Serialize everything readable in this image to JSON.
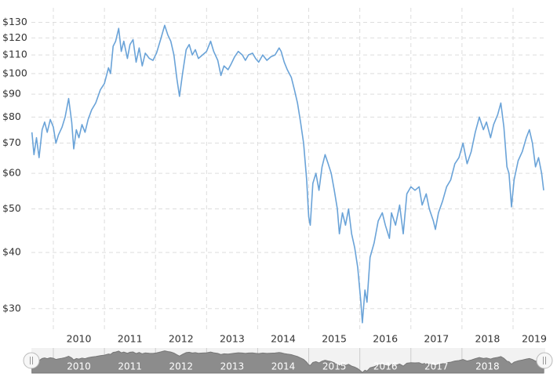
{
  "chart_data": {
    "type": "line",
    "log_scale": true,
    "grid": true,
    "color": "#6aa3d8",
    "x": [
      2009.58,
      2009.62,
      2009.67,
      2009.72,
      2009.78,
      2009.83,
      2009.88,
      2009.94,
      2010.0,
      2010.05,
      2010.1,
      2010.17,
      2010.23,
      2010.3,
      2010.36,
      2010.4,
      2010.45,
      2010.5,
      2010.56,
      2010.62,
      2010.68,
      2010.75,
      2010.83,
      2010.92,
      2011.0,
      2011.08,
      2011.12,
      2011.17,
      2011.22,
      2011.28,
      2011.33,
      2011.38,
      2011.45,
      2011.5,
      2011.56,
      2011.62,
      2011.68,
      2011.74,
      2011.8,
      2011.88,
      2011.95,
      2012.02,
      2012.1,
      2012.18,
      2012.24,
      2012.3,
      2012.36,
      2012.42,
      2012.47,
      2012.53,
      2012.6,
      2012.66,
      2012.72,
      2012.78,
      2012.84,
      2012.92,
      2013.0,
      2013.08,
      2013.14,
      2013.22,
      2013.28,
      2013.34,
      2013.42,
      2013.48,
      2013.55,
      2013.62,
      2013.7,
      2013.76,
      2013.82,
      2013.9,
      2013.96,
      2014.02,
      2014.1,
      2014.18,
      2014.26,
      2014.34,
      2014.42,
      2014.46,
      2014.52,
      2014.58,
      2014.66,
      2014.72,
      2014.78,
      2014.84,
      2014.9,
      2014.96,
      2015.0,
      2015.03,
      2015.08,
      2015.14,
      2015.2,
      2015.26,
      2015.32,
      2015.38,
      2015.44,
      2015.5,
      2015.56,
      2015.6,
      2015.66,
      2015.72,
      2015.78,
      2015.84,
      2015.9,
      2015.96,
      2016.02,
      2016.05,
      2016.1,
      2016.14,
      2016.2,
      2016.28,
      2016.36,
      2016.44,
      2016.5,
      2016.58,
      2016.62,
      2016.7,
      2016.78,
      2016.85,
      2016.92,
      2017.0,
      2017.08,
      2017.16,
      2017.22,
      2017.3,
      2017.36,
      2017.44,
      2017.48,
      2017.54,
      2017.62,
      2017.7,
      2017.78,
      2017.86,
      2017.94,
      2018.02,
      2018.1,
      2018.18,
      2018.26,
      2018.34,
      2018.42,
      2018.48,
      2018.56,
      2018.62,
      2018.7,
      2018.76,
      2018.82,
      2018.88,
      2018.92,
      2018.97,
      2019.02,
      2019.1,
      2019.18,
      2019.26,
      2019.32,
      2019.38,
      2019.44,
      2019.5,
      2019.56,
      2019.6
    ],
    "values": [
      74,
      66,
      72,
      65,
      75,
      78,
      74,
      79,
      76,
      70,
      73,
      76,
      80,
      88,
      78,
      68,
      75,
      72,
      77,
      74,
      79,
      83,
      86,
      92,
      95,
      103,
      100,
      115,
      118,
      126,
      112,
      118,
      108,
      116,
      119,
      106,
      114,
      104,
      111,
      108,
      107,
      111,
      119,
      128,
      122,
      118,
      110,
      97,
      89,
      100,
      113,
      116,
      110,
      113,
      108,
      110,
      112,
      118,
      112,
      107,
      99,
      104,
      102,
      105,
      109,
      112,
      110,
      107,
      110,
      111,
      108,
      106,
      110,
      107,
      109,
      110,
      114,
      112,
      106,
      102,
      98,
      92,
      86,
      78,
      70,
      58,
      48,
      46,
      57,
      60,
      55,
      62,
      66,
      63,
      60,
      55,
      50,
      44,
      49,
      46,
      50,
      44,
      41,
      37,
      31,
      27.9,
      33,
      31,
      39,
      42,
      47,
      49,
      46,
      43,
      49,
      46,
      51,
      44,
      54,
      56,
      55,
      56,
      51,
      54,
      50,
      47,
      45,
      49,
      52,
      56,
      58,
      63,
      65,
      70,
      63,
      67,
      74,
      80,
      75,
      78,
      72,
      77,
      81,
      86,
      76,
      62,
      60,
      50.5,
      58,
      64,
      67,
      72,
      75,
      70,
      62,
      65,
      60,
      55
    ],
    "xlim": [
      2009.57,
      2019.63
    ],
    "xticks": [
      2010,
      2011,
      2012,
      2013,
      2014,
      2015,
      2016,
      2017,
      2018,
      2019
    ],
    "ylim": [
      27,
      140
    ],
    "yticks": [
      {
        "value": 30,
        "label": "$30"
      },
      {
        "value": 40,
        "label": "$40"
      },
      {
        "value": 50,
        "label": "$50"
      },
      {
        "value": 60,
        "label": "$60"
      },
      {
        "value": 70,
        "label": "$70"
      },
      {
        "value": 80,
        "label": "$80"
      },
      {
        "value": 90,
        "label": "$90"
      },
      {
        "value": 100,
        "label": "$100"
      },
      {
        "value": 110,
        "label": "$110"
      },
      {
        "value": 120,
        "label": "$120"
      },
      {
        "value": 130,
        "label": "$130"
      }
    ]
  }
}
